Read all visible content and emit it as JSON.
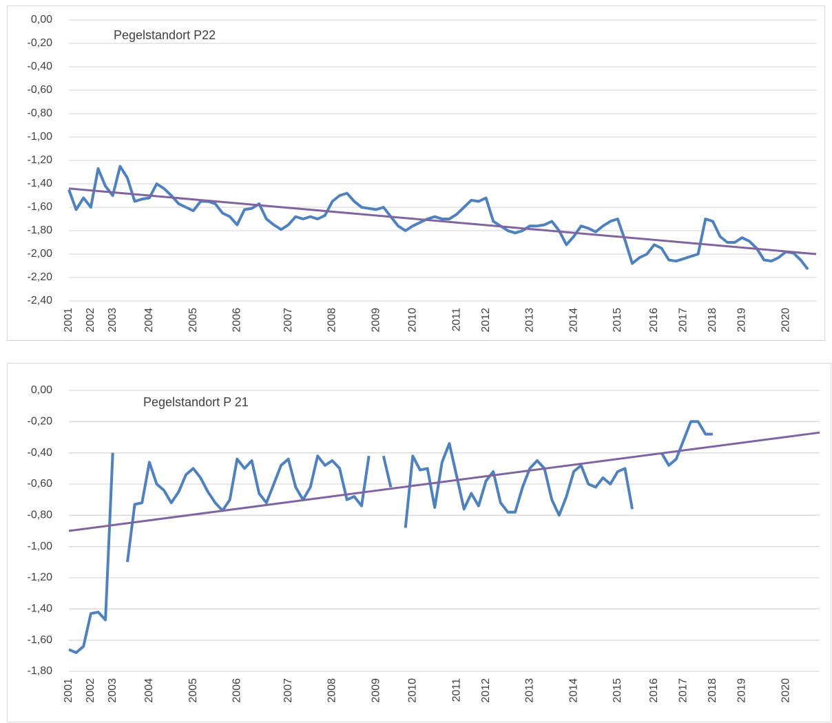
{
  "chart_data": [
    {
      "type": "line",
      "annotation": "Pegelstandort P22",
      "categories": [
        "2001",
        null,
        null,
        "2002",
        null,
        null,
        "2003",
        null,
        null,
        null,
        null,
        "2004",
        null,
        null,
        null,
        null,
        null,
        "2005",
        null,
        null,
        null,
        null,
        null,
        "2006",
        null,
        null,
        null,
        null,
        null,
        null,
        "2007",
        null,
        null,
        null,
        null,
        null,
        "2008",
        null,
        null,
        null,
        null,
        null,
        "2009",
        null,
        null,
        null,
        null,
        "2010",
        null,
        null,
        null,
        null,
        null,
        "2011",
        null,
        null,
        null,
        "2012",
        null,
        null,
        null,
        null,
        null,
        "2013",
        null,
        null,
        null,
        null,
        null,
        "2014",
        null,
        null,
        null,
        null,
        null,
        "2015",
        null,
        null,
        null,
        null,
        "2016",
        null,
        null,
        null,
        "2017",
        null,
        null,
        null,
        "2018",
        null,
        null,
        null,
        "2019",
        null,
        null,
        null,
        null,
        null,
        "2020",
        null,
        null,
        null
      ],
      "series": [
        {
          "color": "#4f81bd",
          "values": [
            -1.45,
            -1.62,
            -1.52,
            -1.6,
            -1.27,
            -1.42,
            -1.5,
            -1.25,
            -1.35,
            -1.55,
            -1.53,
            -1.52,
            -1.4,
            -1.44,
            -1.5,
            -1.57,
            -1.6,
            -1.63,
            -1.55,
            -1.55,
            -1.57,
            -1.65,
            -1.68,
            -1.75,
            -1.62,
            -1.61,
            -1.57,
            -1.7,
            -1.75,
            -1.79,
            -1.75,
            -1.68,
            -1.7,
            -1.68,
            -1.7,
            -1.67,
            -1.55,
            -1.5,
            -1.48,
            -1.55,
            -1.6,
            -1.61,
            -1.62,
            -1.6,
            -1.68,
            -1.76,
            -1.8,
            -1.76,
            -1.73,
            -1.7,
            -1.68,
            -1.7,
            -1.7,
            -1.66,
            -1.6,
            -1.54,
            -1.55,
            -1.52,
            -1.72,
            -1.76,
            -1.8,
            -1.82,
            -1.8,
            -1.76,
            -1.76,
            -1.75,
            -1.72,
            -1.8,
            -1.92,
            -1.85,
            -1.76,
            -1.78,
            -1.81,
            -1.76,
            -1.72,
            -1.7,
            -1.88,
            -2.08,
            -2.03,
            -2.0,
            -1.92,
            -1.95,
            -2.05,
            -2.06,
            -2.04,
            -2.02,
            -2.0,
            -1.7,
            -1.72,
            -1.85,
            -1.9,
            -1.9,
            -1.86,
            -1.89,
            -1.95,
            -2.05,
            -2.06,
            -2.03,
            -1.98,
            -1.99,
            -2.05,
            -2.13
          ]
        }
      ],
      "trend": {
        "color": "#8064a2",
        "values": [
          -1.44,
          -2.0
        ]
      },
      "ylim": [
        -2.4,
        0
      ],
      "yticks": [
        {
          "value": 0,
          "label": "0,00"
        },
        {
          "value": -0.2,
          "label": "-0,20"
        },
        {
          "value": -0.4,
          "label": "-0,40"
        },
        {
          "value": -0.6,
          "label": "-0,60"
        },
        {
          "value": -0.8,
          "label": "-0,80"
        },
        {
          "value": -1.0,
          "label": "-1,00"
        },
        {
          "value": -1.2,
          "label": "-1,20"
        },
        {
          "value": -1.4,
          "label": "-1,40"
        },
        {
          "value": -1.6,
          "label": "-1,60"
        },
        {
          "value": -1.8,
          "label": "-1,80"
        },
        {
          "value": -2.0,
          "label": "-2,00"
        },
        {
          "value": -2.2,
          "label": "-2,20"
        },
        {
          "value": -2.4,
          "label": "-2,40"
        }
      ],
      "grid": true
    },
    {
      "type": "line",
      "annotation": "Pegelstandort P 21",
      "categories": [
        "2001",
        null,
        null,
        "2002",
        null,
        null,
        "2003",
        null,
        null,
        null,
        null,
        "2004",
        null,
        null,
        null,
        null,
        null,
        "2005",
        null,
        null,
        null,
        null,
        null,
        "2006",
        null,
        null,
        null,
        null,
        null,
        null,
        "2007",
        null,
        null,
        null,
        null,
        null,
        "2008",
        null,
        null,
        null,
        null,
        null,
        "2009",
        null,
        null,
        null,
        null,
        "2010",
        null,
        null,
        null,
        null,
        null,
        "2011",
        null,
        null,
        null,
        "2012",
        null,
        null,
        null,
        null,
        null,
        "2013",
        null,
        null,
        null,
        null,
        null,
        "2014",
        null,
        null,
        null,
        null,
        null,
        "2015",
        null,
        null,
        null,
        null,
        "2016",
        null,
        null,
        null,
        "2017",
        null,
        null,
        null,
        "2018",
        null,
        null,
        null,
        "2019",
        null,
        null,
        null,
        null,
        null,
        "2020",
        null,
        null,
        null
      ],
      "series": [
        {
          "color": "#4f81bd",
          "values": [
            -1.66,
            -1.68,
            -1.64,
            -1.43,
            -1.42,
            -1.47,
            -0.4,
            null,
            -1.1,
            -0.73,
            -0.72,
            -0.46,
            -0.6,
            -0.64,
            -0.72,
            -0.65,
            -0.54,
            -0.5,
            -0.56,
            -0.65,
            -0.72,
            -0.77,
            -0.7,
            -0.44,
            -0.5,
            -0.45,
            -0.66,
            -0.72,
            -0.6,
            -0.48,
            -0.44,
            -0.62,
            -0.7,
            -0.62,
            -0.42,
            -0.48,
            -0.45,
            -0.5,
            -0.7,
            -0.68,
            -0.74,
            -0.42,
            null,
            -0.42,
            -0.62,
            null,
            -0.88,
            -0.42,
            -0.51,
            -0.5,
            -0.75,
            -0.46,
            -0.34,
            -0.55,
            -0.76,
            -0.66,
            -0.74,
            -0.58,
            -0.52,
            -0.72,
            -0.78,
            -0.78,
            -0.62,
            -0.5,
            -0.45,
            -0.5,
            -0.7,
            -0.8,
            -0.68,
            -0.52,
            -0.48,
            -0.6,
            -0.62,
            -0.56,
            -0.6,
            -0.52,
            -0.5,
            -0.76,
            null,
            null,
            null,
            -0.4,
            -0.48,
            -0.44,
            -0.32,
            -0.2,
            -0.2,
            -0.28,
            -0.28,
            null,
            null,
            null,
            null,
            null,
            null,
            null,
            null,
            null,
            null,
            null,
            null,
            null
          ]
        }
      ],
      "trend": {
        "color": "#8064a2",
        "values": [
          -0.9,
          -0.27
        ]
      },
      "ylim": [
        -1.8,
        0
      ],
      "yticks": [
        {
          "value": 0,
          "label": "0,00"
        },
        {
          "value": -0.2,
          "label": "-0,20"
        },
        {
          "value": -0.4,
          "label": "-0,40"
        },
        {
          "value": -0.6,
          "label": "-0,60"
        },
        {
          "value": -0.8,
          "label": "-0,80"
        },
        {
          "value": -1.0,
          "label": "-1,00"
        },
        {
          "value": -1.2,
          "label": "-1,20"
        },
        {
          "value": -1.4,
          "label": "-1,40"
        },
        {
          "value": -1.6,
          "label": "-1,60"
        },
        {
          "value": -1.8,
          "label": "-1,80"
        }
      ],
      "grid": true
    }
  ]
}
